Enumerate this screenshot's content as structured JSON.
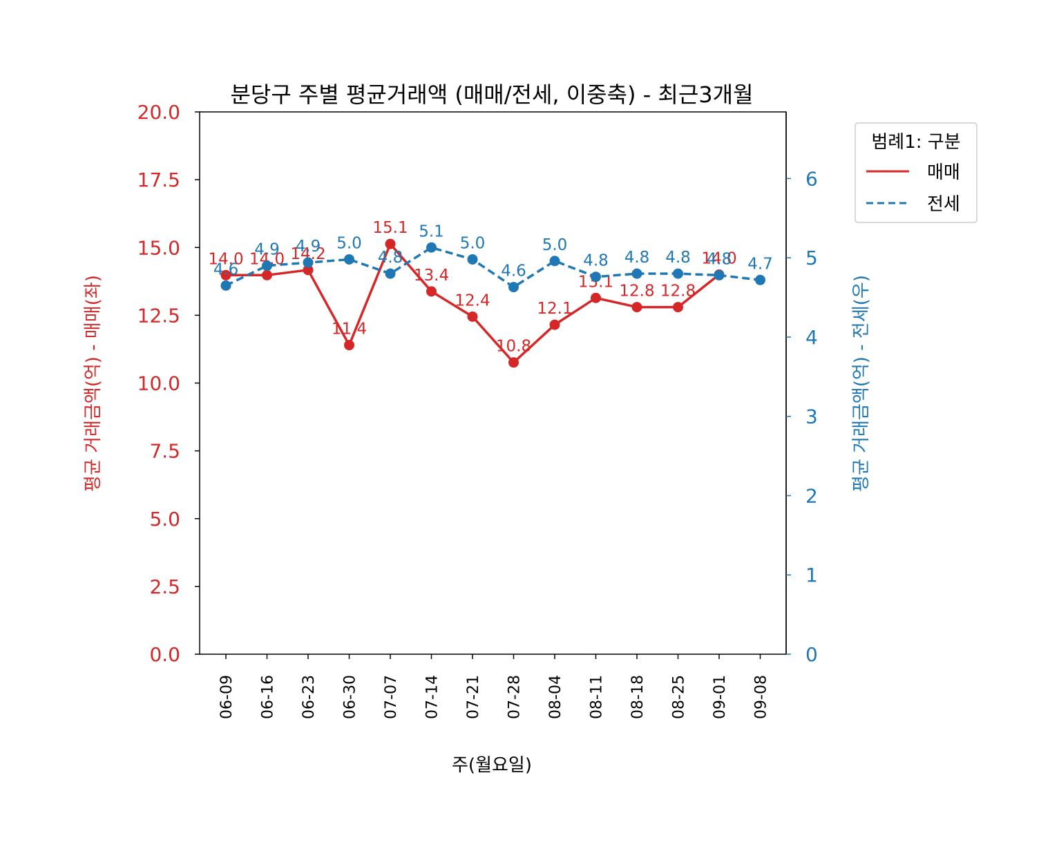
{
  "chart_data": {
    "type": "line",
    "title": "분당구 주별 평균거래액 (매매/전세, 이중축) - 최근3개월",
    "xlabel": "주(월요일)",
    "ylabel_left": "평균 거래금액(억) - 매매(좌)",
    "ylabel_right": "평균 거래금액(억) - 전세(우)",
    "categories": [
      "06-09",
      "06-16",
      "06-23",
      "06-30",
      "07-07",
      "07-14",
      "07-21",
      "07-28",
      "08-04",
      "08-11",
      "08-18",
      "08-25",
      "09-01",
      "09-08"
    ],
    "ylim_left": [
      0,
      20
    ],
    "ylim_right": [
      0,
      6.84
    ],
    "yticks_left": [
      "0.0",
      "2.5",
      "5.0",
      "7.5",
      "10.0",
      "12.5",
      "15.0",
      "17.5",
      "20.0"
    ],
    "yticks_right": [
      "0",
      "1",
      "2",
      "3",
      "4",
      "5",
      "6"
    ],
    "grid": false,
    "legend": {
      "title": "범례1: 구분",
      "placement": "outside-right-top",
      "entries": [
        "매매",
        "전세"
      ]
    },
    "series": [
      {
        "name": "매매",
        "axis": "left",
        "color": "#d62728",
        "linestyle": "solid",
        "values": [
          13.98,
          13.98,
          14.17,
          11.4,
          15.13,
          13.38,
          12.45,
          10.76,
          12.15,
          13.14,
          12.8,
          12.8,
          14.0,
          null
        ],
        "labels": [
          "14.0",
          "14.0",
          "14.2",
          "11.4",
          "15.1",
          "13.4",
          "12.4",
          "10.8",
          "12.1",
          "13.1",
          "12.8",
          "12.8",
          "14.0",
          ""
        ]
      },
      {
        "name": "전세",
        "axis": "right",
        "color": "#1f77b4",
        "linestyle": "dashed",
        "values": [
          4.65,
          4.9,
          4.94,
          4.98,
          4.8,
          5.13,
          4.98,
          4.63,
          4.96,
          4.76,
          4.8,
          4.8,
          4.78,
          4.72
        ],
        "labels": [
          "4.6",
          "4.9",
          "4.9",
          "5.0",
          "4.8",
          "5.1",
          "5.0",
          "4.6",
          "5.0",
          "4.8",
          "4.8",
          "4.8",
          "4.8",
          "4.7"
        ]
      }
    ]
  }
}
